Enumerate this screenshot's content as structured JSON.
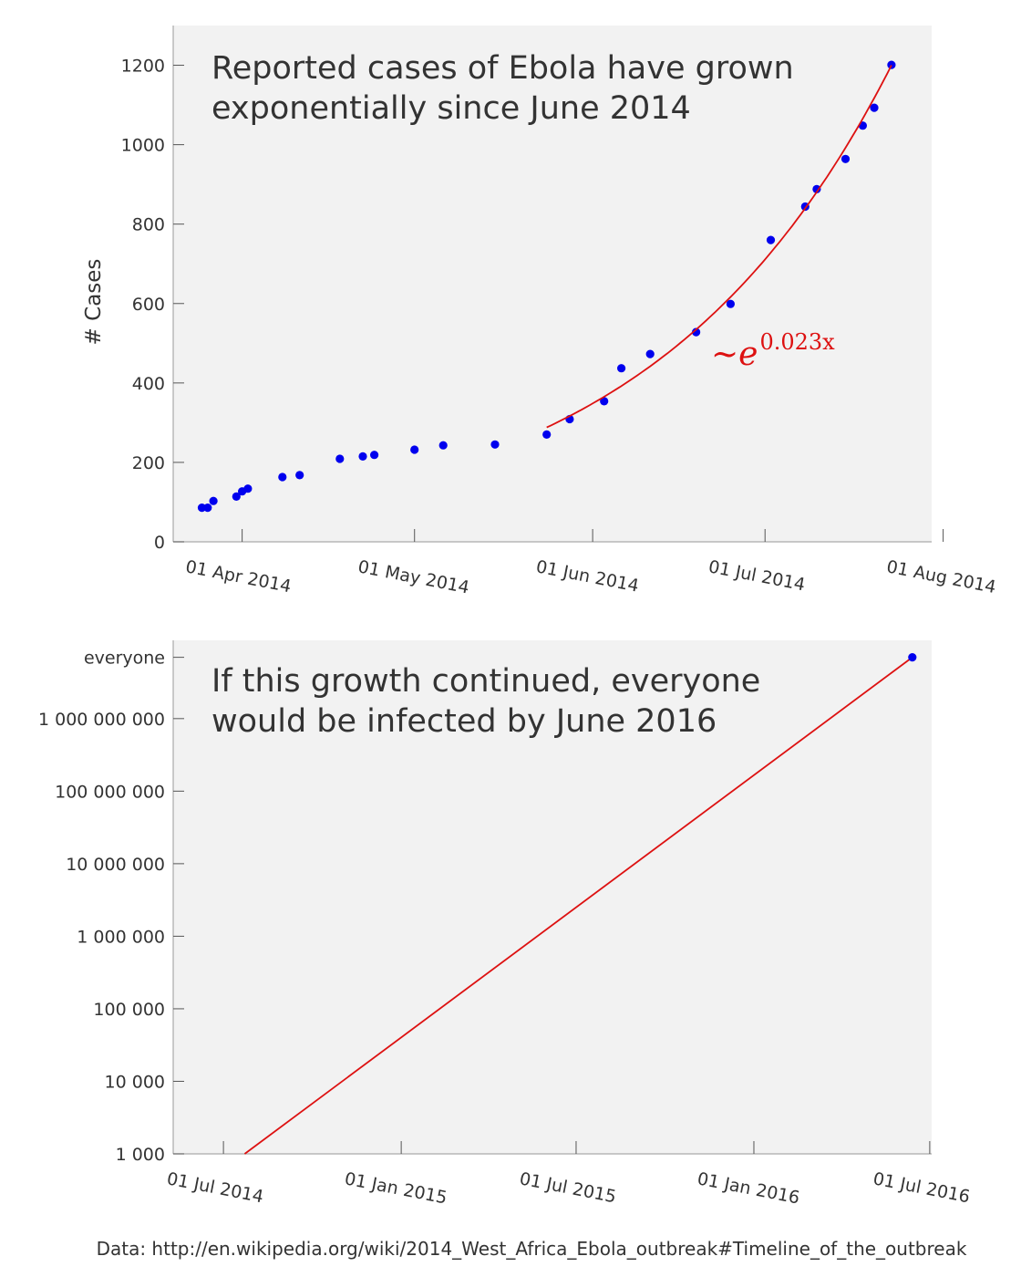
{
  "chart_data": [
    {
      "type": "scatter",
      "title_lines": [
        "Reported cases of Ebola have grown",
        "exponentially since June 2014"
      ],
      "xlabel": "",
      "ylabel": "# Cases",
      "x_type": "date",
      "xlim": [
        "2014-03-20",
        "2014-07-30"
      ],
      "ylim": [
        0,
        1300
      ],
      "yticks": [
        0,
        200,
        400,
        600,
        800,
        1000,
        1200
      ],
      "xticks": [
        {
          "date": "2014-04-01",
          "label": "01 Apr 2014"
        },
        {
          "date": "2014-05-01",
          "label": "01 May 2014"
        },
        {
          "date": "2014-06-01",
          "label": "01 Jun 2014"
        },
        {
          "date": "2014-07-01",
          "label": "01 Jul 2014"
        },
        {
          "date": "2014-08-01",
          "label": "01 Aug 2014"
        }
      ],
      "series": [
        {
          "kind": "points",
          "color": "#0000ee",
          "points": [
            {
              "x": "2014-03-25",
              "y": 86
            },
            {
              "x": "2014-03-26",
              "y": 86
            },
            {
              "x": "2014-03-27",
              "y": 103
            },
            {
              "x": "2014-03-31",
              "y": 114
            },
            {
              "x": "2014-04-01",
              "y": 127
            },
            {
              "x": "2014-04-02",
              "y": 134
            },
            {
              "x": "2014-04-08",
              "y": 163
            },
            {
              "x": "2014-04-11",
              "y": 168
            },
            {
              "x": "2014-04-18",
              "y": 209
            },
            {
              "x": "2014-04-22",
              "y": 215
            },
            {
              "x": "2014-04-24",
              "y": 219
            },
            {
              "x": "2014-05-01",
              "y": 232
            },
            {
              "x": "2014-05-06",
              "y": 243
            },
            {
              "x": "2014-05-15",
              "y": 245
            },
            {
              "x": "2014-05-24",
              "y": 270
            },
            {
              "x": "2014-05-28",
              "y": 309
            },
            {
              "x": "2014-06-03",
              "y": 354
            },
            {
              "x": "2014-06-06",
              "y": 437
            },
            {
              "x": "2014-06-11",
              "y": 473
            },
            {
              "x": "2014-06-19",
              "y": 528
            },
            {
              "x": "2014-06-25",
              "y": 599
            },
            {
              "x": "2014-07-02",
              "y": 760
            },
            {
              "x": "2014-07-08",
              "y": 844
            },
            {
              "x": "2014-07-10",
              "y": 888
            },
            {
              "x": "2014-07-15",
              "y": 964
            },
            {
              "x": "2014-07-18",
              "y": 1048
            },
            {
              "x": "2014-07-20",
              "y": 1093
            },
            {
              "x": "2014-07-23",
              "y": 1201
            }
          ]
        },
        {
          "kind": "line",
          "color": "#dd1111",
          "fit": "exponential",
          "points": [
            {
              "x": "2014-05-24",
              "y": 288
            },
            {
              "x": "2014-06-08",
              "y": 405
            },
            {
              "x": "2014-06-23",
              "y": 570
            },
            {
              "x": "2014-07-08",
              "y": 800
            },
            {
              "x": "2014-07-23",
              "y": 1200
            }
          ]
        }
      ],
      "annotation": {
        "prefix": "~e",
        "exponent": "0.023x",
        "color": "#dd1111"
      },
      "grid": false,
      "background": "#f2f2f2"
    },
    {
      "type": "line",
      "title_lines": [
        "If this growth continued, everyone",
        "would be infected by June 2016"
      ],
      "xlabel": "",
      "ylabel": "",
      "x_type": "date",
      "y_scale": "log",
      "xlim": [
        "2014-05-10",
        "2016-07-03"
      ],
      "ylim": [
        1000,
        12000000000
      ],
      "yticks": [
        {
          "value": 1000,
          "label": "1 000"
        },
        {
          "value": 10000,
          "label": "10 000"
        },
        {
          "value": 100000,
          "label": "100 000"
        },
        {
          "value": 1000000,
          "label": "1 000 000"
        },
        {
          "value": 10000000,
          "label": "10 000 000"
        },
        {
          "value": 100000000,
          "label": "100 000 000"
        },
        {
          "value": 1000000000,
          "label": "1 000 000 000"
        },
        {
          "value": 7000000000,
          "label": "everyone"
        }
      ],
      "xticks": [
        {
          "date": "2014-07-01",
          "label": "01 Jul 2014"
        },
        {
          "date": "2015-01-01",
          "label": "01 Jan 2015"
        },
        {
          "date": "2015-07-01",
          "label": "01 Jul 2015"
        },
        {
          "date": "2016-01-01",
          "label": "01 Jan 2016"
        },
        {
          "date": "2016-07-01",
          "label": "01 Jul 2016"
        }
      ],
      "series": [
        {
          "kind": "line",
          "color": "#dd1111",
          "points": [
            {
              "x": "2014-07-23",
              "y": 1000
            },
            {
              "x": "2016-06-13",
              "y": 7000000000
            }
          ]
        },
        {
          "kind": "points",
          "color": "#0000ee",
          "points": [
            {
              "x": "2016-06-13",
              "y": 7000000000
            }
          ]
        }
      ],
      "grid": false,
      "background": "#f2f2f2"
    }
  ],
  "footer": {
    "source": "Data: http://en.wikipedia.org/wiki/2014_West_Africa_Ebola_outbreak#Timeline_of_the_outbreak"
  }
}
